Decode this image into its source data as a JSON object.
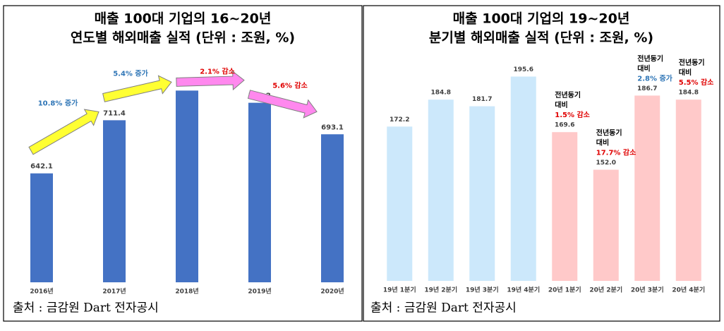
{
  "chart_data": [
    {
      "type": "bar",
      "title": [
        "매출 100대 기업의 16~20년",
        "연도별 해외매출 실적 (단위 : 조원, %)"
      ],
      "categories": [
        "2016년",
        "2017년",
        "2018년",
        "2019년",
        "2020년"
      ],
      "values": [
        642.1,
        711.4,
        750.1,
        734.2,
        693.1
      ],
      "color": "#4472c4",
      "ylim": [
        500,
        790
      ],
      "annotations": [
        {
          "text": "10.8% 증가",
          "color": "#2e75b6",
          "arrow_color": "#ffff33"
        },
        {
          "text": "5.4% 증가",
          "color": "#2e75b6",
          "arrow_color": "#ffff33"
        },
        {
          "text": "2.1% 감소",
          "color": "#e00000",
          "arrow_color": "#ff88ee"
        },
        {
          "text": "5.6% 감소",
          "color": "#e00000",
          "arrow_color": "#ff88ee"
        }
      ],
      "source": "출처 : 금감원 Dart 전자공시"
    },
    {
      "type": "bar",
      "title": [
        "매출 100대 기업의 19~20년",
        "분기별 해외매출 실적 (단위 : 조원, %)"
      ],
      "categories": [
        "19년 1분기",
        "19년 2분기",
        "19년 3분기",
        "19년 4분기",
        "20년 1분기",
        "20년 2분기",
        "20년 3분기",
        "20년 4분기"
      ],
      "values": [
        172.2,
        184.8,
        181.7,
        195.6,
        169.6,
        152.0,
        186.7,
        184.8
      ],
      "value_labels": [
        "172.2",
        "184.8",
        "181.7",
        "195.6",
        "169.6",
        "152.0",
        "186.7",
        "184.8"
      ],
      "colors": [
        "#cce8fb",
        "#cce8fb",
        "#cce8fb",
        "#cce8fb",
        "#ffc9c9",
        "#ffc9c9",
        "#ffc9c9",
        "#ffc9c9"
      ],
      "ylim": [
        100,
        205
      ],
      "annotations": [
        {
          "lines": [
            "전년동기",
            "대비",
            "1.5% 감소"
          ],
          "color": "#e00000"
        },
        {
          "lines": [
            "전년동기",
            "대비",
            "17.7% 감소"
          ],
          "color": "#e00000"
        },
        {
          "lines": [
            "전년동기",
            "대비",
            "2.8% 증가"
          ],
          "color": "#2e75b6"
        },
        {
          "lines": [
            "전년동기",
            "대비",
            "5.5% 감소"
          ],
          "color": "#e00000"
        }
      ],
      "source": "출처 : 금감원 Dart 전자공시"
    }
  ]
}
